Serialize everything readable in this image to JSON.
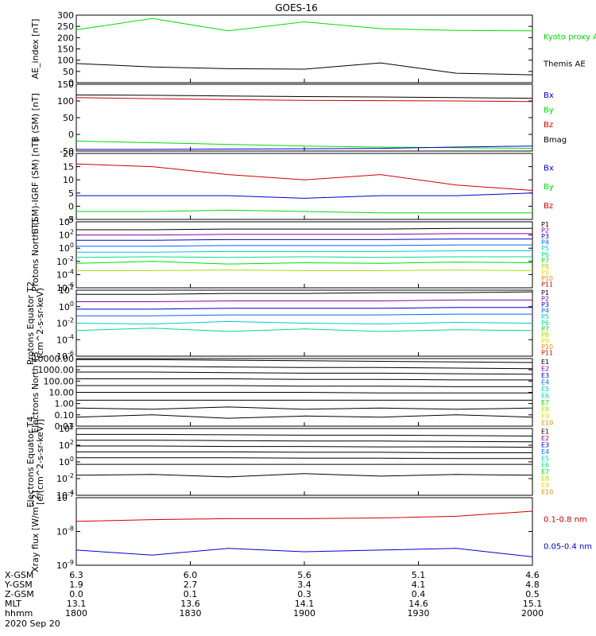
{
  "title": "GOES-16",
  "time_label": "2020 Sep 20",
  "ephemeris": {
    "rows": [
      {
        "label": "X-GSM",
        "values": [
          "6.3",
          "6.0",
          "5.6",
          "5.1",
          "4.6"
        ]
      },
      {
        "label": "Y-GSM",
        "values": [
          "1.9",
          "2.7",
          "3.4",
          "4.1",
          "4.8"
        ]
      },
      {
        "label": "Z-GSM",
        "values": [
          "0.0",
          "0.1",
          "0.3",
          "0.4",
          "0.5"
        ]
      },
      {
        "label": "MLT",
        "values": [
          "13.1",
          "13.6",
          "14.1",
          "14.6",
          "15.1"
        ]
      },
      {
        "label": "hhmm",
        "values": [
          "1800",
          "1830",
          "1900",
          "1930",
          "2000"
        ]
      }
    ]
  },
  "colors": {
    "green": "#00dd00",
    "red": "#cc0000",
    "blue": "#0000cc",
    "black": "#000000",
    "P1": "#000000",
    "P2": "#8800aa",
    "P3": "#0000cc",
    "P4": "#0066ff",
    "P5": "#00cccc",
    "P6": "#00dd88",
    "P7": "#00dd00",
    "P8": "#aadd00",
    "P9": "#dddd00",
    "P10": "#ee8800",
    "P11": "#cc0000"
  },
  "chart_data": [
    {
      "type": "line",
      "ylabel": "AE_index [nT]",
      "ylim": [
        0,
        300
      ],
      "yticks": [
        "300",
        "250",
        "200",
        "150",
        "100",
        "50",
        "0"
      ],
      "x": [
        0,
        20,
        40,
        60,
        80,
        100,
        120
      ],
      "series": [
        {
          "name": "Kyoto proxy AE",
          "color": "#00dd00",
          "values": [
            235,
            285,
            230,
            270,
            240,
            232,
            230
          ]
        },
        {
          "name": "Themis AE",
          "color": "#000000",
          "values": [
            85,
            70,
            62,
            60,
            88,
            42,
            35
          ]
        }
      ]
    },
    {
      "type": "line",
      "ylabel": "B (SM) [nT]",
      "ylim": [
        -50,
        150
      ],
      "yticks": [
        "150",
        "100",
        "50",
        "0",
        "-50"
      ],
      "x": [
        0,
        20,
        40,
        60,
        80,
        100,
        120
      ],
      "legend": [
        "Bx",
        "By",
        "Bz",
        "Bmag"
      ],
      "series": [
        {
          "name": "Bmag",
          "color": "#000000",
          "values": [
            118,
            117,
            115,
            113,
            112,
            110,
            108
          ]
        },
        {
          "name": "Bz",
          "color": "#cc0000",
          "values": [
            110,
            107,
            104,
            102,
            101,
            100,
            98
          ]
        },
        {
          "name": "By",
          "color": "#00dd00",
          "values": [
            -20,
            -25,
            -30,
            -35,
            -38,
            -40,
            -42
          ]
        },
        {
          "name": "Bx",
          "color": "#0000cc",
          "values": [
            -45,
            -45,
            -44,
            -43,
            -42,
            -38,
            -35
          ]
        }
      ]
    },
    {
      "type": "line",
      "ylabel": "B (SM)-IGRF (SM) [nT]",
      "ylim": [
        -5,
        20
      ],
      "yticks": [
        "20",
        "15",
        "10",
        "5",
        "0",
        "-5"
      ],
      "x": [
        0,
        20,
        40,
        60,
        80,
        100,
        120
      ],
      "legend": [
        "Bx",
        "By",
        "Bz"
      ],
      "series": [
        {
          "name": "Bz",
          "color": "#cc0000",
          "values": [
            16,
            15,
            12,
            10,
            12,
            8,
            6
          ]
        },
        {
          "name": "Bx",
          "color": "#0000cc",
          "values": [
            4,
            4,
            4,
            3,
            4,
            4,
            5
          ]
        },
        {
          "name": "By",
          "color": "#00dd00",
          "values": [
            -2,
            -2,
            -1.5,
            -2,
            -2.5,
            -2.5,
            -2.5
          ]
        }
      ]
    },
    {
      "type": "line",
      "ylabel": "Protons North T1",
      "log": true,
      "ylim": [
        -6,
        4
      ],
      "yticks": [
        "10^4",
        "10^2",
        "10^0",
        "10^-2",
        "10^-4",
        "10^-6"
      ],
      "x": [
        0,
        20,
        40,
        60,
        80,
        100,
        120
      ],
      "legend": [
        "P1",
        "P2",
        "P3",
        "P4",
        "P5",
        "P6",
        "P7",
        "P8",
        "P9",
        "P10",
        "P11"
      ],
      "series": [
        {
          "name": "P1",
          "values": [
            2.8,
            2.8,
            2.9,
            2.9,
            2.9,
            3.0,
            3.0
          ]
        },
        {
          "name": "P2",
          "values": [
            2.0,
            2.0,
            2.1,
            2.1,
            2.1,
            2.2,
            2.2
          ]
        },
        {
          "name": "P3",
          "values": [
            1.2,
            1.2,
            1.3,
            1.3,
            1.3,
            1.4,
            1.4
          ]
        },
        {
          "name": "P4",
          "values": [
            0.3,
            0.3,
            0.4,
            0.4,
            0.4,
            0.5,
            0.5
          ]
        },
        {
          "name": "P5",
          "values": [
            -0.6,
            -0.6,
            -0.5,
            -0.5,
            -0.5,
            -0.4,
            -0.4
          ]
        },
        {
          "name": "P6",
          "values": [
            -1.4,
            -1.3,
            -1.4,
            -1.3,
            -1.4,
            -1.3,
            -1.3
          ]
        },
        {
          "name": "P7",
          "values": [
            -2.3,
            -2.0,
            -2.4,
            -2.2,
            -2.3,
            -2.1,
            -2.2
          ]
        },
        {
          "name": "P8",
          "values": [
            -3.4,
            -3.4,
            -3.3,
            -3.4,
            -3.4,
            -3.3,
            -3.4
          ]
        }
      ]
    },
    {
      "type": "line",
      "ylabel": "Protons Equator T2 (cm^2-s-sr-keV)",
      "log": true,
      "ylim": [
        -6,
        2
      ],
      "yticks": [
        "10^2",
        "10^0",
        "10^-2",
        "10^-4",
        "10^-6"
      ],
      "x": [
        0,
        20,
        40,
        60,
        80,
        100,
        120
      ],
      "legend": [
        "P1",
        "P2",
        "P3",
        "P4",
        "P5",
        "P6",
        "P7",
        "P8",
        "P9",
        "P10",
        "P11"
      ],
      "series": [
        {
          "name": "P1",
          "values": [
            1.5,
            1.5,
            1.6,
            1.6,
            1.7,
            1.7,
            1.8
          ]
        },
        {
          "name": "P2",
          "values": [
            0.6,
            0.6,
            0.7,
            0.7,
            0.7,
            0.8,
            0.8
          ]
        },
        {
          "name": "P3",
          "values": [
            -0.3,
            -0.3,
            -0.2,
            -0.2,
            -0.2,
            -0.1,
            -0.1
          ]
        },
        {
          "name": "P4",
          "values": [
            -1.1,
            -1.1,
            -1.0,
            -1.0,
            -1.0,
            -0.9,
            -0.9
          ]
        },
        {
          "name": "P5",
          "values": [
            -2.0,
            -2.1,
            -1.8,
            -2.0,
            -2.1,
            -1.9,
            -2.0
          ]
        },
        {
          "name": "P6",
          "values": [
            -2.9,
            -2.6,
            -3.0,
            -2.7,
            -3.0,
            -2.8,
            -2.9
          ]
        }
      ]
    },
    {
      "type": "line",
      "ylabel": "Electrons North T3",
      "log": true,
      "ylim": [
        -2,
        4
      ],
      "yticks": [
        "10000.00",
        "1000.00",
        "100.00",
        "10.00",
        "1.00",
        "0.10",
        "0.01"
      ],
      "x": [
        0,
        20,
        40,
        60,
        80,
        100,
        120
      ],
      "legend": [
        "E1",
        "E2",
        "E3",
        "E4",
        "E5",
        "E6",
        "E7",
        "E8",
        "E9",
        "E10"
      ],
      "series": [
        {
          "name": "E1",
          "values": [
            3.9,
            3.9,
            3.85,
            3.8,
            3.75,
            3.7,
            3.65
          ]
        },
        {
          "name": "E2",
          "values": [
            3.3,
            3.3,
            3.25,
            3.2,
            3.2,
            3.15,
            3.1
          ]
        },
        {
          "name": "E3",
          "values": [
            2.8,
            2.8,
            2.75,
            2.7,
            2.7,
            2.65,
            2.6
          ]
        },
        {
          "name": "E4",
          "values": [
            2.2,
            2.2,
            2.2,
            2.15,
            2.15,
            2.1,
            2.1
          ]
        },
        {
          "name": "E5",
          "values": [
            1.6,
            1.6,
            1.6,
            1.55,
            1.55,
            1.5,
            1.5
          ]
        },
        {
          "name": "E6",
          "values": [
            1.0,
            1.0,
            1.0,
            1.0,
            0.95,
            0.95,
            0.95
          ]
        },
        {
          "name": "E7",
          "values": [
            0.3,
            0.3,
            0.3,
            0.3,
            0.3,
            0.3,
            0.3
          ]
        },
        {
          "name": "E8",
          "values": [
            -0.4,
            -0.5,
            -0.3,
            -0.5,
            -0.4,
            -0.5,
            -0.4
          ]
        },
        {
          "name": "E9",
          "values": [
            -1.2,
            -1.0,
            -1.3,
            -1.1,
            -1.2,
            -1.0,
            -1.2
          ]
        }
      ]
    },
    {
      "type": "line",
      "ylabel": "Electrons Equator T4 [e/(cm^2-s-sr-keV)]",
      "log": true,
      "ylim": [
        -4,
        4
      ],
      "yticks": [
        "10^4",
        "10^2",
        "10^0",
        "10^-2",
        "10^-4"
      ],
      "x": [
        0,
        20,
        40,
        60,
        80,
        100,
        120
      ],
      "legend": [
        "E1",
        "E2",
        "E3",
        "E4",
        "E5",
        "E6",
        "E7",
        "E8",
        "E9",
        "E10"
      ],
      "series": [
        {
          "name": "E1",
          "values": [
            3.3,
            3.3,
            3.25,
            3.2,
            3.2,
            3.15,
            3.1
          ]
        },
        {
          "name": "E2",
          "values": [
            2.6,
            2.6,
            2.55,
            2.5,
            2.5,
            2.45,
            2.4
          ]
        },
        {
          "name": "E3",
          "values": [
            1.9,
            1.9,
            1.85,
            1.85,
            1.8,
            1.8,
            1.75
          ]
        },
        {
          "name": "E4",
          "values": [
            1.2,
            1.2,
            1.2,
            1.15,
            1.15,
            1.1,
            1.1
          ]
        },
        {
          "name": "E5",
          "values": [
            0.5,
            0.5,
            0.5,
            0.45,
            0.45,
            0.4,
            0.4
          ]
        },
        {
          "name": "E6",
          "values": [
            -0.3,
            -0.3,
            -0.3,
            -0.3,
            -0.3,
            -0.3,
            -0.3
          ]
        },
        {
          "name": "E7",
          "values": [
            -1.6,
            -1.5,
            -1.8,
            -1.4,
            -1.7,
            -1.5,
            -1.6
          ]
        }
      ]
    },
    {
      "type": "line",
      "ylabel": "Xray flux [W/m^2]",
      "log": true,
      "ylim": [
        -9,
        -7
      ],
      "yticks": [
        "10^-7",
        "10^-8",
        "10^-9"
      ],
      "x": [
        0,
        20,
        40,
        60,
        80,
        100,
        120
      ],
      "legend": [
        "0.1-0.8 nm",
        "0.05-0.4 nm"
      ],
      "series": [
        {
          "name": "0.1-0.8 nm",
          "color": "#cc0000",
          "values": [
            -7.7,
            -7.65,
            -7.62,
            -7.62,
            -7.6,
            -7.55,
            -7.4
          ]
        },
        {
          "name": "0.05-0.4 nm",
          "color": "#0000cc",
          "values": [
            -8.55,
            -8.7,
            -8.5,
            -8.6,
            -8.55,
            -8.5,
            -8.75
          ]
        }
      ]
    }
  ]
}
